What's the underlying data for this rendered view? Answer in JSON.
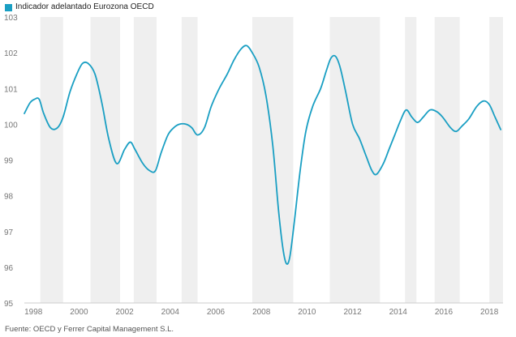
{
  "legend": {
    "label": "Indicador adelantado Eurozona OECD",
    "color": "#1a9fc3"
  },
  "source": "Fuente: OECD y Ferrer Capital Management S.L.",
  "chart_data": {
    "type": "line",
    "title": "",
    "xlabel": "",
    "ylabel": "",
    "xlim": [
      1997.6,
      2018.6
    ],
    "ylim": [
      95,
      103
    ],
    "x_ticks": [
      1998,
      2000,
      2002,
      2004,
      2006,
      2008,
      2010,
      2012,
      2014,
      2016,
      2018
    ],
    "y_ticks": [
      95,
      96,
      97,
      98,
      99,
      100,
      101,
      102,
      103
    ],
    "recession_bands": [
      [
        1998.3,
        1999.3
      ],
      [
        2000.5,
        2001.8
      ],
      [
        2002.4,
        2003.4
      ],
      [
        2004.5,
        2005.2
      ],
      [
        2007.6,
        2009.4
      ],
      [
        2011.0,
        2013.2
      ],
      [
        2014.3,
        2014.8
      ],
      [
        2015.6,
        2016.7
      ],
      [
        2018.0,
        2018.6
      ]
    ],
    "series": [
      {
        "name": "Indicador adelantado Eurozona OECD",
        "color": "#1a9fc3",
        "points": [
          [
            1997.6,
            100.3
          ],
          [
            1997.85,
            100.6
          ],
          [
            1998.05,
            100.7
          ],
          [
            1998.25,
            100.7
          ],
          [
            1998.45,
            100.3
          ],
          [
            1998.75,
            99.9
          ],
          [
            1999.05,
            99.9
          ],
          [
            1999.3,
            100.2
          ],
          [
            1999.6,
            100.9
          ],
          [
            1999.9,
            101.4
          ],
          [
            2000.15,
            101.7
          ],
          [
            2000.4,
            101.7
          ],
          [
            2000.7,
            101.4
          ],
          [
            2001.0,
            100.6
          ],
          [
            2001.3,
            99.6
          ],
          [
            2001.65,
            98.9
          ],
          [
            2002.0,
            99.3
          ],
          [
            2002.25,
            99.5
          ],
          [
            2002.45,
            99.3
          ],
          [
            2002.8,
            98.9
          ],
          [
            2003.1,
            98.7
          ],
          [
            2003.35,
            98.7
          ],
          [
            2003.6,
            99.2
          ],
          [
            2003.9,
            99.7
          ],
          [
            2004.15,
            99.9
          ],
          [
            2004.4,
            100.0
          ],
          [
            2004.7,
            100.0
          ],
          [
            2004.95,
            99.9
          ],
          [
            2005.2,
            99.7
          ],
          [
            2005.5,
            99.9
          ],
          [
            2005.8,
            100.5
          ],
          [
            2006.15,
            101.0
          ],
          [
            2006.5,
            101.4
          ],
          [
            2006.8,
            101.8
          ],
          [
            2007.1,
            102.1
          ],
          [
            2007.35,
            102.2
          ],
          [
            2007.6,
            102.0
          ],
          [
            2007.9,
            101.6
          ],
          [
            2008.2,
            100.8
          ],
          [
            2008.5,
            99.4
          ],
          [
            2008.75,
            97.6
          ],
          [
            2008.95,
            96.5
          ],
          [
            2009.1,
            96.1
          ],
          [
            2009.25,
            96.3
          ],
          [
            2009.45,
            97.3
          ],
          [
            2009.7,
            98.7
          ],
          [
            2009.95,
            99.8
          ],
          [
            2010.25,
            100.5
          ],
          [
            2010.6,
            101.0
          ],
          [
            2010.85,
            101.5
          ],
          [
            2011.05,
            101.85
          ],
          [
            2011.25,
            101.9
          ],
          [
            2011.45,
            101.6
          ],
          [
            2011.7,
            100.9
          ],
          [
            2012.0,
            100.0
          ],
          [
            2012.3,
            99.6
          ],
          [
            2012.6,
            99.1
          ],
          [
            2012.85,
            98.7
          ],
          [
            2013.05,
            98.6
          ],
          [
            2013.35,
            98.9
          ],
          [
            2013.6,
            99.3
          ],
          [
            2013.85,
            99.7
          ],
          [
            2014.1,
            100.1
          ],
          [
            2014.35,
            100.4
          ],
          [
            2014.6,
            100.2
          ],
          [
            2014.85,
            100.05
          ],
          [
            2015.1,
            100.2
          ],
          [
            2015.4,
            100.4
          ],
          [
            2015.7,
            100.35
          ],
          [
            2015.95,
            100.2
          ],
          [
            2016.3,
            99.9
          ],
          [
            2016.55,
            99.8
          ],
          [
            2016.8,
            99.95
          ],
          [
            2017.1,
            100.15
          ],
          [
            2017.45,
            100.5
          ],
          [
            2017.75,
            100.65
          ],
          [
            2018.0,
            100.55
          ],
          [
            2018.25,
            100.2
          ],
          [
            2018.5,
            99.85
          ]
        ]
      }
    ]
  }
}
